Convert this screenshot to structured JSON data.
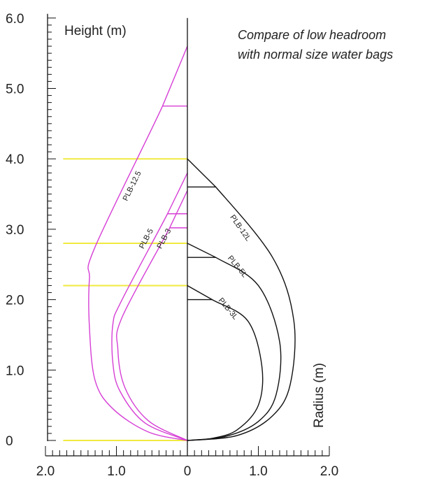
{
  "chart_data": {
    "type": "line",
    "title": "",
    "annotation": [
      "Compare of low headroom",
      "with normal size water bags"
    ],
    "ylabel": "Height (m)",
    "xlabel": "Radius (m)",
    "ylim": [
      0,
      6.0
    ],
    "xlim": [
      -2.0,
      2.0
    ],
    "y_ticks": [
      "0",
      "1.0",
      "2.0",
      "3.0",
      "4.0",
      "5.0",
      "6.0"
    ],
    "y_tick_values": [
      0,
      1,
      2,
      3,
      4,
      5,
      6
    ],
    "x_ticks": [
      "2.0",
      "1.0",
      "0",
      "1.0",
      "2.0"
    ],
    "x_tick_values": [
      -2,
      -1,
      0,
      1,
      2
    ],
    "colors": {
      "normal": "#d63fd6",
      "low": "#111111",
      "level": "#f0ea40",
      "axis": "#111111"
    },
    "level_lines": [
      4.0,
      2.8,
      2.2,
      0
    ],
    "series": [
      {
        "name": "PLB-12.5",
        "color": "#d63fd6",
        "points": [
          [
            0,
            5.6
          ],
          [
            -0.35,
            4.75
          ],
          [
            -1.3,
            2.75
          ],
          [
            -1.38,
            2.3
          ],
          [
            -1.38,
            1.6
          ],
          [
            -1.3,
            0.85
          ],
          [
            -1.05,
            0.45
          ],
          [
            -0.55,
            0.12
          ],
          [
            0,
            0
          ]
        ],
        "neck": [
          [
            -0.35,
            4.75
          ],
          [
            0,
            4.75
          ]
        ]
      },
      {
        "name": "PLB-5",
        "color": "#d63fd6",
        "points": [
          [
            0,
            3.8
          ],
          [
            -0.28,
            3.22
          ],
          [
            -0.92,
            2.0
          ],
          [
            -1.05,
            1.65
          ],
          [
            -1.05,
            1.1
          ],
          [
            -0.95,
            0.7
          ],
          [
            -0.6,
            0.25
          ],
          [
            0,
            0
          ]
        ],
        "neck": [
          [
            -0.28,
            3.22
          ],
          [
            0,
            3.22
          ]
        ]
      },
      {
        "name": "PLB-3",
        "color": "#d63fd6",
        "points": [
          [
            0,
            3.55
          ],
          [
            -0.25,
            3.02
          ],
          [
            -0.92,
            1.75
          ],
          [
            -0.98,
            1.3
          ],
          [
            -0.88,
            0.75
          ],
          [
            -0.55,
            0.28
          ],
          [
            0,
            0
          ]
        ],
        "neck": [
          [
            -0.25,
            3.02
          ],
          [
            0,
            3.02
          ]
        ]
      },
      {
        "name": "PLB-12L",
        "color": "#111111",
        "points": [
          [
            0,
            4.0
          ],
          [
            0.4,
            3.6
          ],
          [
            1.2,
            2.6
          ],
          [
            1.5,
            1.7
          ],
          [
            1.45,
            0.8
          ],
          [
            1.2,
            0.35
          ],
          [
            0.7,
            0.07
          ],
          [
            0,
            0
          ]
        ],
        "neck": [
          [
            0,
            3.6
          ],
          [
            0.4,
            3.6
          ]
        ]
      },
      {
        "name": "PLB-5L",
        "color": "#111111",
        "points": [
          [
            0,
            2.8
          ],
          [
            0.4,
            2.6
          ],
          [
            1.0,
            2.2
          ],
          [
            1.3,
            1.4
          ],
          [
            1.25,
            0.65
          ],
          [
            1.0,
            0.27
          ],
          [
            0.55,
            0.06
          ],
          [
            0,
            0
          ]
        ],
        "neck": [
          [
            0,
            2.6
          ],
          [
            0.4,
            2.6
          ]
        ]
      },
      {
        "name": "PLB-3L",
        "color": "#111111",
        "points": [
          [
            0,
            2.2
          ],
          [
            0.35,
            2.0
          ],
          [
            0.85,
            1.7
          ],
          [
            1.05,
            1.05
          ],
          [
            1.0,
            0.5
          ],
          [
            0.7,
            0.15
          ],
          [
            0.35,
            0.03
          ],
          [
            0,
            0
          ]
        ],
        "neck": [
          [
            0,
            2.0
          ],
          [
            0.35,
            2.0
          ]
        ]
      }
    ],
    "series_labels": [
      {
        "text": "PLB-12.5",
        "x": -0.75,
        "y": 3.6,
        "rotate": -64
      },
      {
        "text": "PLB-5",
        "x": -0.55,
        "y": 2.85,
        "rotate": -62
      },
      {
        "text": "PLB-3",
        "x": -0.3,
        "y": 2.85,
        "rotate": -62
      },
      {
        "text": "PLB-12L",
        "x": 0.72,
        "y": 3.0,
        "rotate": 55
      },
      {
        "text": "PLB-5L",
        "x": 0.68,
        "y": 2.45,
        "rotate": 50
      },
      {
        "text": "PLB-3L",
        "x": 0.55,
        "y": 1.85,
        "rotate": 50
      }
    ]
  }
}
